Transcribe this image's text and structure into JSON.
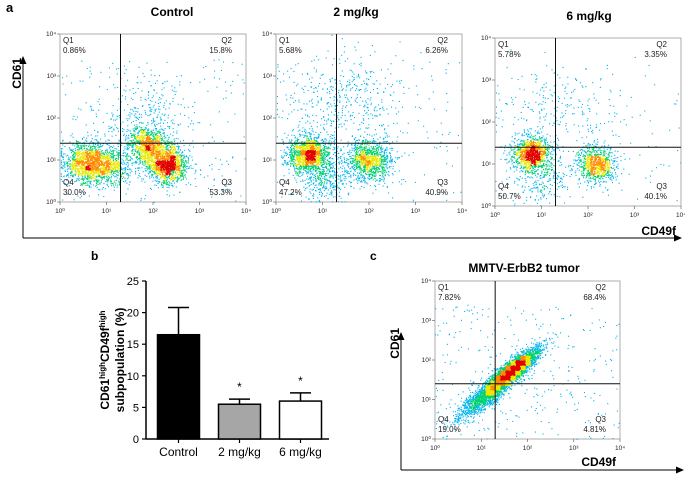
{
  "panel_letters": {
    "a": "a",
    "b": "b",
    "c": "c"
  },
  "axis_titles": {
    "cd61": "CD61",
    "cd49f": "CD49f"
  },
  "chart_data": [
    {
      "type": "scatter",
      "subtype": "flow-cytometry-quadrant-plot",
      "panel": "a",
      "title": "Control",
      "xlabel": "CD49f",
      "ylabel": "CD61",
      "x_scale": "log",
      "y_scale": "log",
      "xlim": [
        1,
        10000
      ],
      "ylim": [
        1,
        10000
      ],
      "tick_labels": [
        "10⁰",
        "10¹",
        "10²",
        "10³",
        "10⁴"
      ],
      "gate": {
        "x": 20,
        "y": 25
      },
      "quadrants": [
        {
          "name": "Q1",
          "value": "0.86%"
        },
        {
          "name": "Q2",
          "value": "15.8%"
        },
        {
          "name": "Q3",
          "value": "53.3%"
        },
        {
          "name": "Q4",
          "value": "30.0%"
        }
      ],
      "clusters": [
        {
          "x": 4,
          "y": 9,
          "spread": 0.25,
          "weight": 0.28
        },
        {
          "x": 12,
          "y": 7,
          "spread": 0.22,
          "weight": 0.12
        },
        {
          "x": 80,
          "y": 22,
          "spread": 0.22,
          "weight": 0.22
        },
        {
          "x": 200,
          "y": 8,
          "spread": 0.22,
          "weight": 0.3
        },
        {
          "x": 60,
          "y": 80,
          "spread": 0.5,
          "weight": 0.08
        }
      ]
    },
    {
      "type": "scatter",
      "subtype": "flow-cytometry-quadrant-plot",
      "panel": "a",
      "title": "2 mg/kg",
      "xlabel": "CD49f",
      "ylabel": "CD61",
      "x_scale": "log",
      "y_scale": "log",
      "xlim": [
        1,
        10000
      ],
      "ylim": [
        1,
        10000
      ],
      "tick_labels": [
        "10⁰",
        "10¹",
        "10²",
        "10³",
        "10⁴"
      ],
      "gate": {
        "x": 20,
        "y": 25
      },
      "quadrants": [
        {
          "name": "Q1",
          "value": "5.68%"
        },
        {
          "name": "Q2",
          "value": "6.26%"
        },
        {
          "name": "Q3",
          "value": "40.9%"
        },
        {
          "name": "Q4",
          "value": "47.2%"
        }
      ],
      "clusters": [
        {
          "x": 5,
          "y": 14,
          "spread": 0.22,
          "weight": 0.42
        },
        {
          "x": 100,
          "y": 10,
          "spread": 0.25,
          "weight": 0.32
        },
        {
          "x": 10,
          "y": 4,
          "spread": 0.3,
          "weight": 0.14
        },
        {
          "x": 30,
          "y": 200,
          "spread": 0.6,
          "weight": 0.12
        }
      ]
    },
    {
      "type": "scatter",
      "subtype": "flow-cytometry-quadrant-plot",
      "panel": "a",
      "title": "6 mg/kg",
      "xlabel": "CD49f",
      "ylabel": "CD61",
      "x_scale": "log",
      "y_scale": "log",
      "xlim": [
        1,
        10000
      ],
      "ylim": [
        1,
        10000
      ],
      "tick_labels": [
        "10⁰",
        "10¹",
        "10²",
        "10³",
        "10⁴"
      ],
      "gate": {
        "x": 20,
        "y": 25
      },
      "quadrants": [
        {
          "name": "Q1",
          "value": "5.78%"
        },
        {
          "name": "Q2",
          "value": "3.35%"
        },
        {
          "name": "Q3",
          "value": "40.1%"
        },
        {
          "name": "Q4",
          "value": "50.7%"
        }
      ],
      "clusters": [
        {
          "x": 6,
          "y": 18,
          "spread": 0.2,
          "weight": 0.48
        },
        {
          "x": 150,
          "y": 10,
          "spread": 0.22,
          "weight": 0.34
        },
        {
          "x": 10,
          "y": 5,
          "spread": 0.3,
          "weight": 0.1
        },
        {
          "x": 20,
          "y": 200,
          "spread": 0.6,
          "weight": 0.08
        }
      ]
    },
    {
      "type": "bar",
      "panel": "b",
      "categories": [
        "Control",
        "2 mg/kg",
        "6 mg/kg"
      ],
      "values": [
        16.5,
        5.5,
        6.0
      ],
      "errors": [
        4.3,
        0.8,
        1.3
      ],
      "significance": [
        "",
        "*",
        "*"
      ],
      "bar_fills": [
        "#000000",
        "#a6a6a6",
        "#ffffff"
      ],
      "ylabel_main": "CD61",
      "ylabel_sup1": "high",
      "ylabel_mid": "CD49f",
      "ylabel_sup2": "high",
      "ylabel_line2": "subpopulation (%)",
      "ylim": [
        0,
        25
      ],
      "yticks": [
        0,
        5,
        10,
        15,
        20,
        25
      ]
    },
    {
      "type": "scatter",
      "subtype": "flow-cytometry-quadrant-plot",
      "panel": "c",
      "title": "MMTV-ErbB2 tumor",
      "xlabel": "CD49f",
      "ylabel": "CD61",
      "x_scale": "log",
      "y_scale": "log",
      "xlim": [
        1,
        10000
      ],
      "ylim": [
        1,
        10000
      ],
      "tick_labels": [
        "10⁰",
        "10¹",
        "10²",
        "10³",
        "10⁴"
      ],
      "gate": {
        "x": 20,
        "y": 25
      },
      "quadrants": [
        {
          "name": "Q1",
          "value": "7.82%"
        },
        {
          "name": "Q2",
          "value": "68.4%"
        },
        {
          "name": "Q3",
          "value": "4.81%"
        },
        {
          "name": "Q4",
          "value": "19.0%"
        }
      ],
      "clusters": [
        {
          "x": 45,
          "y": 55,
          "spread": 0.28,
          "weight": 0.7,
          "correlated": true
        },
        {
          "x": 15,
          "y": 15,
          "spread": 0.35,
          "weight": 0.3,
          "correlated": true
        }
      ]
    }
  ]
}
